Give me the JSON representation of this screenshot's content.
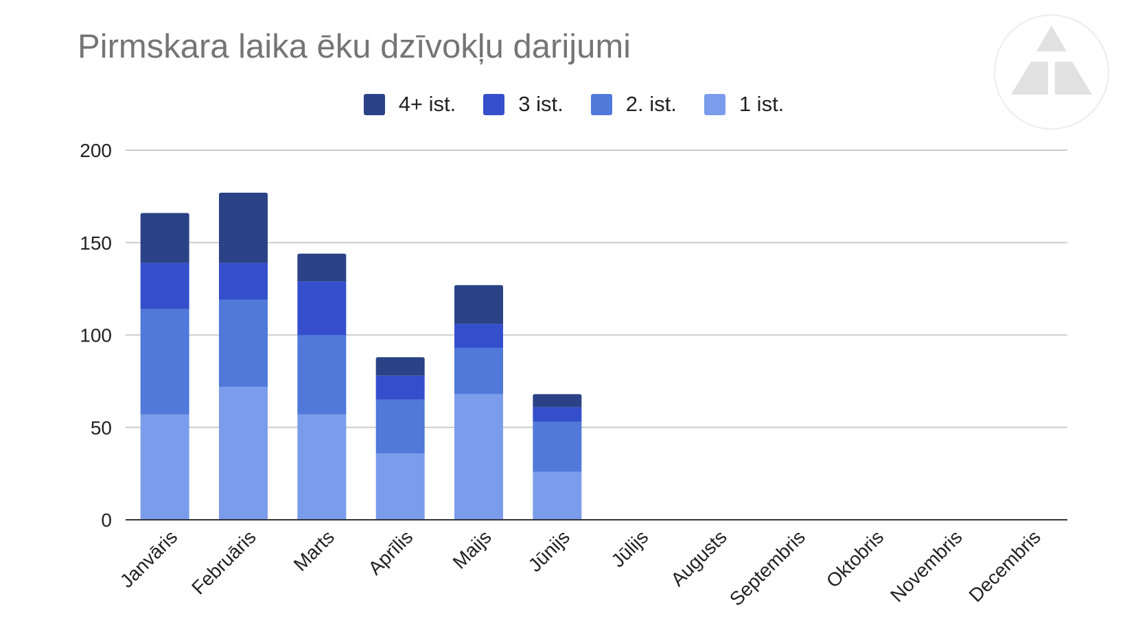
{
  "chart_data": {
    "type": "bar",
    "stacked": true,
    "title": "Pirmskara laika ēku dzīvokļu darijumi",
    "xlabel": "",
    "ylabel": "",
    "ylim": [
      0,
      200
    ],
    "yticks": [
      "0",
      "50",
      "100",
      "150",
      "200"
    ],
    "grid": true,
    "legend_position": "top-center",
    "categories": [
      "Janvāris",
      "Februāris",
      "Marts",
      "Aprīlis",
      "Maijs",
      "Jūnijs",
      "Jūlijs",
      "Augusts",
      "Septembris",
      "Oktobris",
      "Novembris",
      "Decembris"
    ],
    "series": [
      {
        "name": "1 ist.",
        "color": "#7b9ceb",
        "values": [
          57,
          72,
          57,
          36,
          68,
          26,
          0,
          0,
          0,
          0,
          0,
          0
        ]
      },
      {
        "name": "2. ist.",
        "color": "#5079d9",
        "values": [
          57,
          47,
          43,
          29,
          25,
          27,
          0,
          0,
          0,
          0,
          0,
          0
        ]
      },
      {
        "name": "3 ist.",
        "color": "#354fcc",
        "values": [
          25,
          20,
          29,
          13,
          13,
          8,
          0,
          0,
          0,
          0,
          0,
          0
        ]
      },
      {
        "name": "4+ ist.",
        "color": "#2b4386",
        "values": [
          27,
          38,
          15,
          10,
          21,
          7,
          0,
          0,
          0,
          0,
          0,
          0
        ]
      }
    ]
  },
  "legend_order": [
    3,
    2,
    1,
    0
  ],
  "logo": {
    "name": "triangle-logo"
  }
}
